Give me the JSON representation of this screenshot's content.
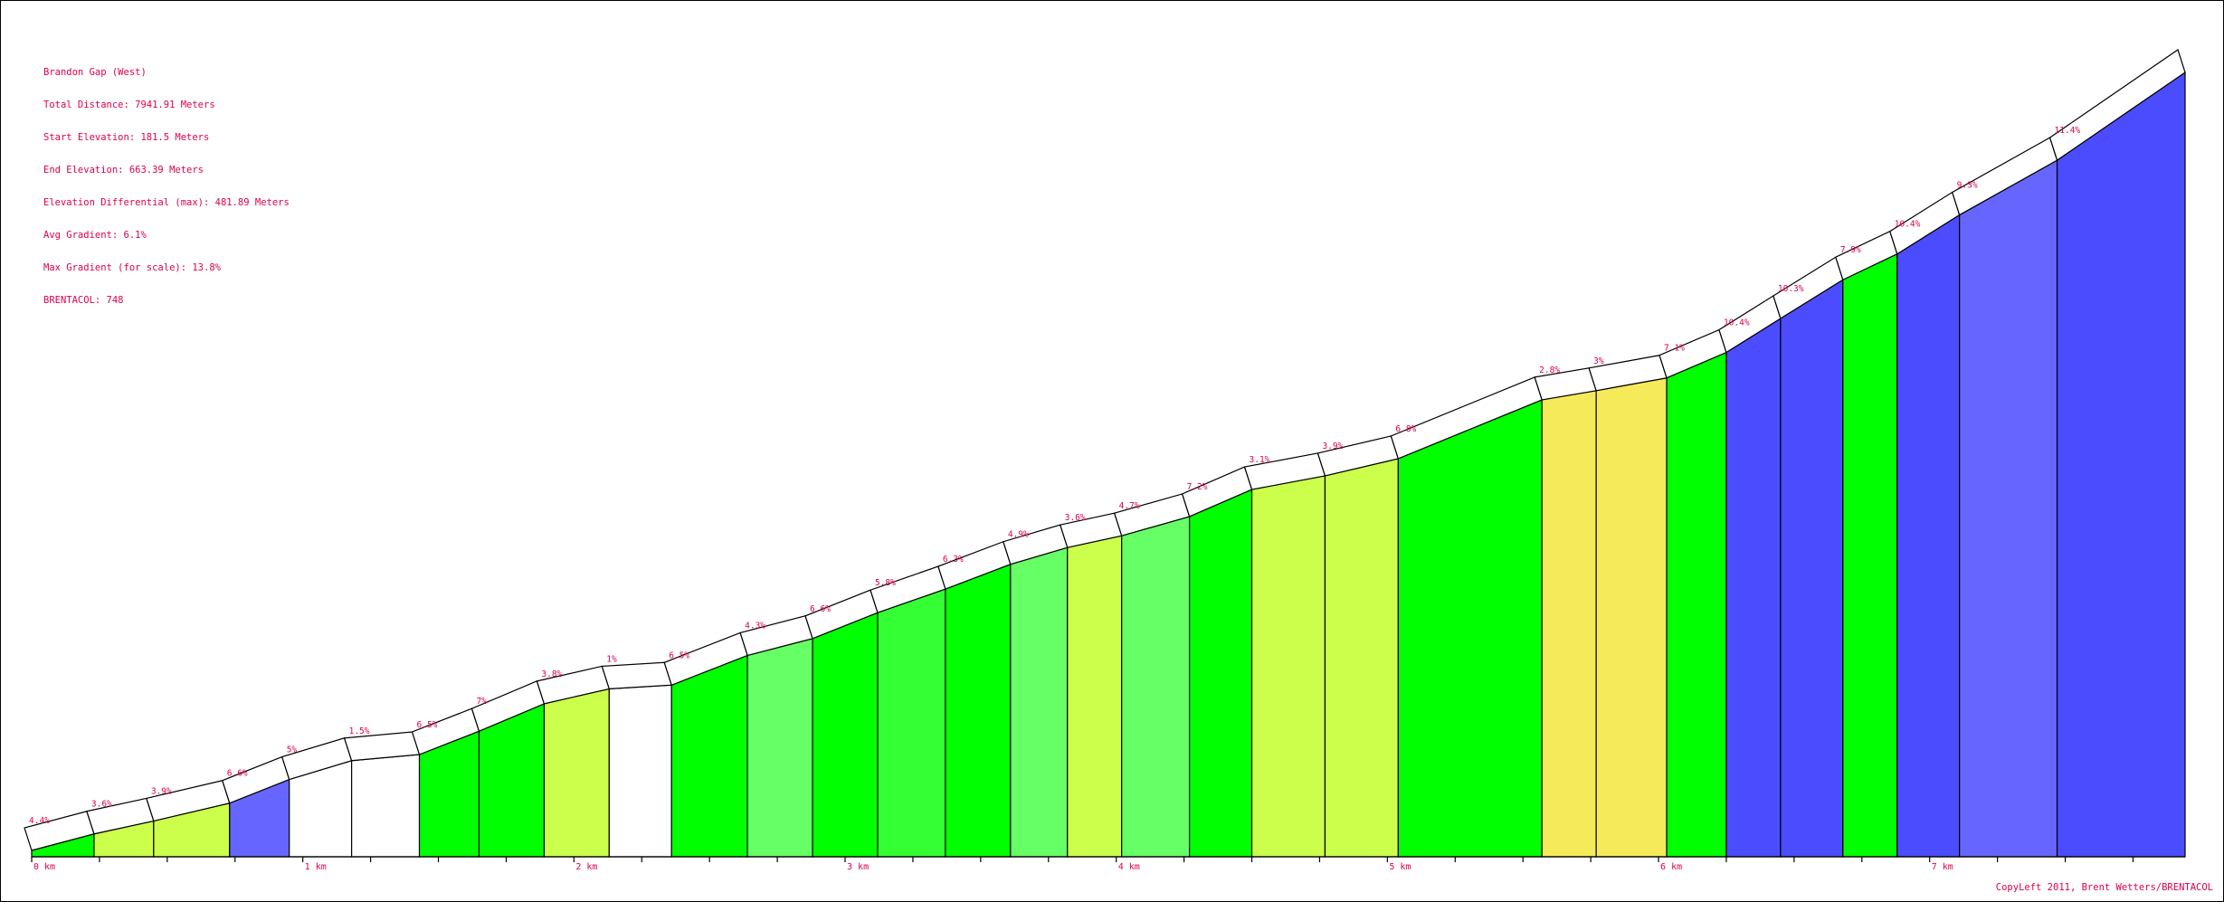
{
  "colors": {
    "text": "#e0004a",
    "outline": "#000000",
    "background": "#ffffff"
  },
  "info": {
    "line1": "Brandon Gap (West)",
    "line2": "Total Distance: 7941.91 Meters",
    "line3": "Start Elevation: 181.5 Meters",
    "line4": "End Elevation: 663.39 Meters",
    "line5": "Elevation Differential (max): 481.89 Meters",
    "line6": "Avg Gradient: 6.1%",
    "line7": "Max Gradient (for scale): 13.8%",
    "line8": "BRENTACOL: 748"
  },
  "copyright": "CopyLeft 2011, Brent Wetters/BRENTACOL",
  "chart_data": {
    "type": "area",
    "title": "Brandon Gap (West)",
    "x_unit": "km",
    "x_tick_labels": [
      "0 km",
      "1 km",
      "2 km",
      "3 km",
      "4 km",
      "5 km",
      "6 km",
      "7 km"
    ],
    "xlim": [
      0,
      7.942
    ],
    "ylim_elevation_m": [
      181.5,
      663.39
    ],
    "segments": [
      {
        "start_km": 0.0,
        "end_km": 0.23,
        "gradient_label": "4.4%",
        "color": "#00ff00"
      },
      {
        "start_km": 0.23,
        "end_km": 0.45,
        "gradient_label": "3.6%",
        "color": "#ccff4c"
      },
      {
        "start_km": 0.45,
        "end_km": 0.73,
        "gradient_label": "3.9%",
        "color": "#ccff4c"
      },
      {
        "start_km": 0.73,
        "end_km": 0.95,
        "gradient_label": "6.6%",
        "color": "#6666ff"
      },
      {
        "start_km": 0.95,
        "end_km": 1.18,
        "gradient_label": "5%",
        "color": "#ffffff"
      },
      {
        "start_km": 1.18,
        "end_km": 1.43,
        "gradient_label": "1.5%",
        "color": "#ffffff"
      },
      {
        "start_km": 1.43,
        "end_km": 1.65,
        "gradient_label": "6.5%",
        "color": "#00ff00"
      },
      {
        "start_km": 1.65,
        "end_km": 1.89,
        "gradient_label": "7%",
        "color": "#00ff00"
      },
      {
        "start_km": 1.89,
        "end_km": 2.13,
        "gradient_label": "3.8%",
        "color": "#ccff4c"
      },
      {
        "start_km": 2.13,
        "end_km": 2.36,
        "gradient_label": "1%",
        "color": "#ffffff"
      },
      {
        "start_km": 2.36,
        "end_km": 2.64,
        "gradient_label": "6.5%",
        "color": "#00ff00"
      },
      {
        "start_km": 2.64,
        "end_km": 2.88,
        "gradient_label": "4.3%",
        "color": "#66ff66"
      },
      {
        "start_km": 2.88,
        "end_km": 3.12,
        "gradient_label": "6.6%",
        "color": "#00ff00"
      },
      {
        "start_km": 3.12,
        "end_km": 3.37,
        "gradient_label": "5.8%",
        "color": "#33ff33"
      },
      {
        "start_km": 3.37,
        "end_km": 3.61,
        "gradient_label": "6.3%",
        "color": "#00ff00"
      },
      {
        "start_km": 3.61,
        "end_km": 3.82,
        "gradient_label": "4.9%",
        "color": "#66ff66"
      },
      {
        "start_km": 3.82,
        "end_km": 4.02,
        "gradient_label": "3.6%",
        "color": "#ccff4c"
      },
      {
        "start_km": 4.02,
        "end_km": 4.27,
        "gradient_label": "4.7%",
        "color": "#66ff66"
      },
      {
        "start_km": 4.27,
        "end_km": 4.5,
        "gradient_label": "7.2%",
        "color": "#00ff00"
      },
      {
        "start_km": 4.5,
        "end_km": 4.77,
        "gradient_label": "3.1%",
        "color": "#ccff4c"
      },
      {
        "start_km": 4.77,
        "end_km": 5.04,
        "gradient_label": "3.9%",
        "color": "#ccff4c"
      },
      {
        "start_km": 5.04,
        "end_km": 5.57,
        "gradient_label": "6.8%",
        "color": "#00ff00"
      },
      {
        "start_km": 5.57,
        "end_km": 5.77,
        "gradient_label": "2.8%",
        "color": "#f5eb5a"
      },
      {
        "start_km": 5.77,
        "end_km": 6.03,
        "gradient_label": "3%",
        "color": "#f5eb5a"
      },
      {
        "start_km": 6.03,
        "end_km": 6.25,
        "gradient_label": "7.1%",
        "color": "#00ff00"
      },
      {
        "start_km": 6.25,
        "end_km": 6.45,
        "gradient_label": "10.4%",
        "color": "#4c4cff"
      },
      {
        "start_km": 6.45,
        "end_km": 6.68,
        "gradient_label": "10.3%",
        "color": "#4c4cff"
      },
      {
        "start_km": 6.68,
        "end_km": 6.88,
        "gradient_label": "7.9%",
        "color": "#00ff00"
      },
      {
        "start_km": 6.88,
        "end_km": 7.11,
        "gradient_label": "10.4%",
        "color": "#4c4cff"
      },
      {
        "start_km": 7.11,
        "end_km": 7.47,
        "gradient_label": "9.3%",
        "color": "#6666ff"
      },
      {
        "start_km": 7.47,
        "end_km": 7.942,
        "gradient_label": "11.4%",
        "color": "#4c4cff"
      }
    ]
  }
}
